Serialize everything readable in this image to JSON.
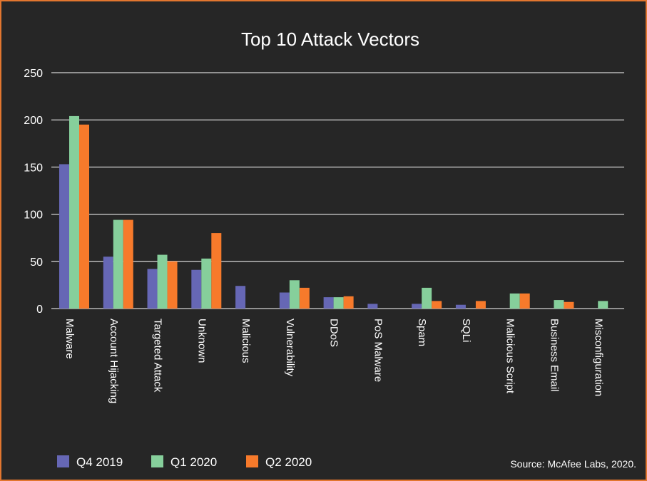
{
  "chart_data": {
    "type": "bar",
    "title": "Top 10 Attack Vectors",
    "xlabel": "",
    "ylabel": "",
    "ylim": [
      0,
      250
    ],
    "yticks": [
      0,
      50,
      100,
      150,
      200,
      250
    ],
    "grid": true,
    "legend_position": "bottom-left",
    "categories": [
      "Malware",
      "Account Hijacking",
      "Targeted Attack",
      "Unknown",
      "Malicious",
      "Vulnerability",
      "DDoS",
      "PoS Malware",
      "Spam",
      "SQLi",
      "Malicious Script",
      "Business Email",
      "Misconfiguration"
    ],
    "series": [
      {
        "name": "Q4 2019",
        "color": "#6667b5",
        "values": [
          153,
          55,
          42,
          41,
          24,
          17,
          12,
          5,
          5,
          4,
          0,
          0,
          0
        ]
      },
      {
        "name": "Q1 2020",
        "color": "#86cf9b",
        "values": [
          204,
          94,
          57,
          53,
          0,
          30,
          12,
          0,
          22,
          0,
          16,
          9,
          8
        ]
      },
      {
        "name": "Q2 2020",
        "color": "#f77a2b",
        "values": [
          195,
          94,
          50,
          80,
          0,
          22,
          13,
          0,
          8,
          8,
          16,
          7,
          0
        ]
      }
    ],
    "source": "Source: McAfee Labs, 2020."
  }
}
